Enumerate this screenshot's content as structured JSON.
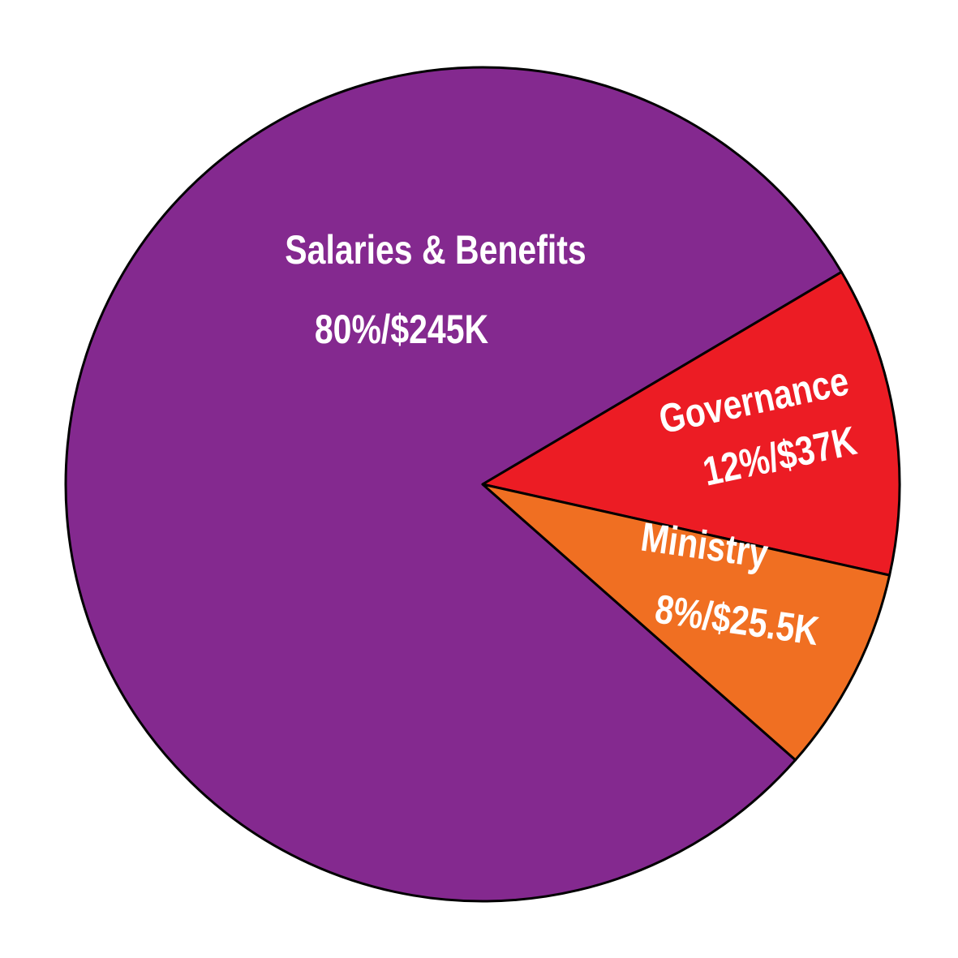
{
  "chart_data": {
    "type": "pie",
    "categories": [
      "Salaries & Benefits",
      "Governance",
      "Ministry"
    ],
    "values": [
      80,
      12,
      8
    ],
    "value_labels": [
      "80%/$245K",
      "12%/$37K",
      "8%/$25.5K"
    ],
    "colors": [
      "#84298f",
      "#ec1c24",
      "#f06f22"
    ]
  }
}
